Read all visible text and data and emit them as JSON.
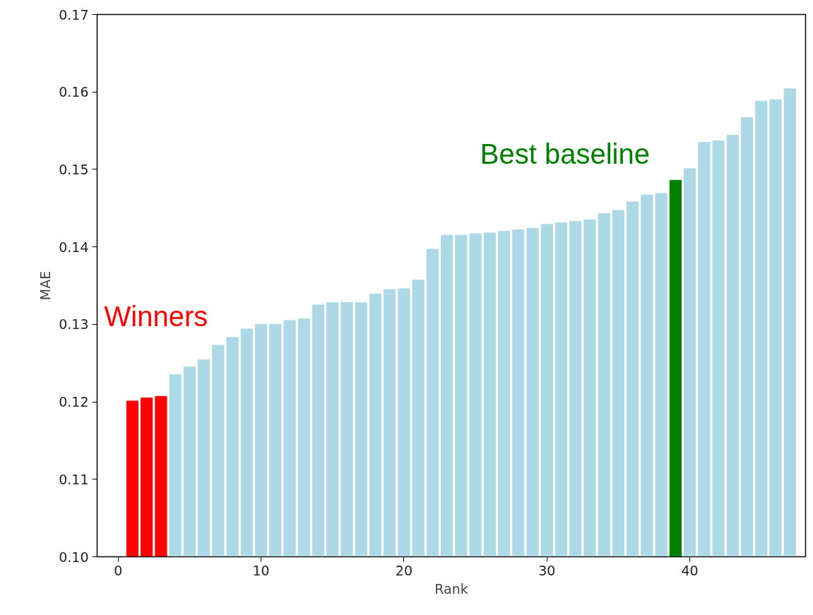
{
  "chart_data": {
    "type": "bar",
    "xlabel": "Rank",
    "ylabel": "MAE",
    "x": [
      1,
      2,
      3,
      4,
      5,
      6,
      7,
      8,
      9,
      10,
      11,
      12,
      13,
      14,
      15,
      16,
      17,
      18,
      19,
      20,
      21,
      22,
      23,
      24,
      25,
      26,
      27,
      28,
      29,
      30,
      31,
      32,
      33,
      34,
      35,
      36,
      37,
      38,
      39,
      40,
      41,
      42,
      43,
      44,
      45,
      46,
      47
    ],
    "values": [
      0.1201,
      0.1205,
      0.1207,
      0.1235,
      0.1245,
      0.1254,
      0.1273,
      0.1283,
      0.1294,
      0.13,
      0.13,
      0.1305,
      0.1307,
      0.1325,
      0.1328,
      0.1328,
      0.1328,
      0.1339,
      0.1345,
      0.1346,
      0.1357,
      0.1397,
      0.1415,
      0.1415,
      0.1417,
      0.1418,
      0.142,
      0.1422,
      0.1424,
      0.1429,
      0.1431,
      0.1433,
      0.1435,
      0.1443,
      0.1447,
      0.1458,
      0.1467,
      0.1469,
      0.1486,
      0.1501,
      0.1535,
      0.1537,
      0.1544,
      0.1567,
      0.1588,
      0.159,
      0.1604
    ],
    "colors": [
      "#ff0000",
      "#ff0000",
      "#ff0000",
      "#add8e6",
      "#add8e6",
      "#add8e6",
      "#add8e6",
      "#add8e6",
      "#add8e6",
      "#add8e6",
      "#add8e6",
      "#add8e6",
      "#add8e6",
      "#add8e6",
      "#add8e6",
      "#add8e6",
      "#add8e6",
      "#add8e6",
      "#add8e6",
      "#add8e6",
      "#add8e6",
      "#add8e6",
      "#add8e6",
      "#add8e6",
      "#add8e6",
      "#add8e6",
      "#add8e6",
      "#add8e6",
      "#add8e6",
      "#add8e6",
      "#add8e6",
      "#add8e6",
      "#add8e6",
      "#add8e6",
      "#add8e6",
      "#add8e6",
      "#add8e6",
      "#add8e6",
      "#008000",
      "#add8e6",
      "#add8e6",
      "#add8e6",
      "#add8e6",
      "#add8e6",
      "#add8e6",
      "#add8e6",
      "#add8e6"
    ],
    "xlim": [
      -1.47,
      48.1
    ],
    "xticks": [
      0,
      10,
      20,
      30,
      40
    ],
    "ylim": [
      0.1,
      0.17
    ],
    "yticks": [
      {
        "value": 0.1,
        "label": "0.10"
      },
      {
        "value": 0.11,
        "label": "0.11"
      },
      {
        "value": 0.12,
        "label": "0.12"
      },
      {
        "value": 0.13,
        "label": "0.13"
      },
      {
        "value": 0.14,
        "label": "0.14"
      },
      {
        "value": 0.15,
        "label": "0.15"
      },
      {
        "value": 0.16,
        "label": "0.16"
      },
      {
        "value": 0.17,
        "label": "0.17"
      }
    ],
    "annotations": [
      "Winners",
      "Best baseline"
    ]
  }
}
